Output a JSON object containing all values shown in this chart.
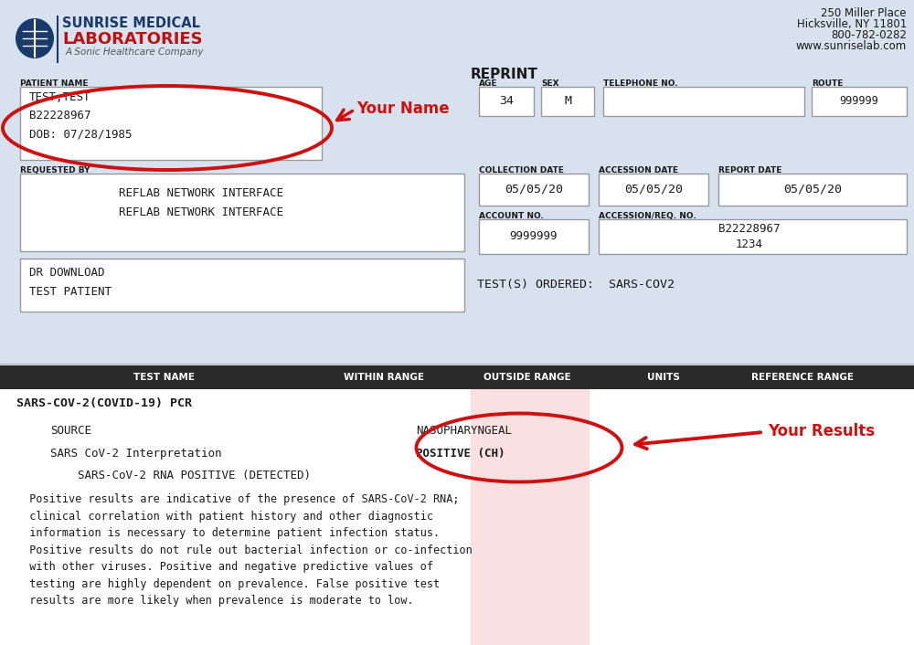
{
  "bg_color": "#d8e2ee",
  "white": "#ffffff",
  "dark": "#1a1a1a",
  "header_bg": "#2a2a2a",
  "red": "#cc1111",
  "lab_blue": "#1a3a6b",
  "lab_red": "#bb1111",
  "gray_border": "#999999",
  "light_gray": "#aaaaaa",
  "pink_col": "#f7c8c8",
  "addr1": "250 Miller Place",
  "addr2": "Hicksville, NY 11801",
  "addr3": "800-782-0282",
  "addr4": "www.sunriselab.com",
  "lab_line1": "SUNRISE MEDICAL",
  "lab_line2": "LABORATORIES",
  "lab_line3": "A Sonic Healthcare Company",
  "reprint": "REPRINT",
  "pt_name_lbl": "PATIENT NAME",
  "pt_name_val": "TEST,TEST\nB22228967\nDOB: 07/28/1985",
  "your_name": "Your Name",
  "your_results": "Your Results",
  "age_lbl": "AGE",
  "age_val": "34",
  "sex_lbl": "SEX",
  "sex_val": "M",
  "tel_lbl": "TELEPHONE NO.",
  "route_lbl": "ROUTE",
  "route_val": "999999",
  "req_lbl": "REQUESTED BY",
  "req_val": "REFLAB NETWORK INTERFACE\nREFLAB NETWORK INTERFACE",
  "col_lbl": "COLLECTION DATE",
  "col_val": "05/05/20",
  "acc_lbl": "ACCESSION DATE",
  "acc_val": "05/05/20",
  "rep_lbl": "REPORT DATE",
  "rep_val": "05/05/20",
  "acct_lbl": "ACCOUNT NO.",
  "acct_val": "9999999",
  "accreq_lbl": "ACCESSION/REQ. NO.",
  "accreq_val": "B22228967\n1234",
  "dr_val": "DR DOWNLOAD\nTEST PATIENT",
  "test_ordered": "TEST(S) ORDERED:  SARS-COV2",
  "hdr1": "TEST NAME",
  "hdr2": "WITHIN RANGE",
  "hdr3": "OUTSIDE RANGE",
  "hdr4": "UNITS",
  "hdr5": "REFERENCE RANGE",
  "test_title": "SARS-COV-2(COVID-19) PCR",
  "src_lbl": "SOURCE",
  "src_val": "NASOPHARYNGEAL",
  "interp_lbl": "SARS CoV-2 Interpretation",
  "interp_val": "POSITIVE (CH)",
  "rna_lbl": "    SARS-CoV-2 RNA POSITIVE (DETECTED)",
  "disclaimer": "  Positive results are indicative of the presence of SARS-CoV-2 RNA;\n  clinical correlation with patient history and other diagnostic\n  information is necessary to determine patient infection status.\n  Positive results do not rule out bacterial infection or co-infection\n  with other viruses. Positive and negative predictive values of\n  testing are highly dependent on prevalence. False positive test\n  results are more likely when prevalence is moderate to low."
}
